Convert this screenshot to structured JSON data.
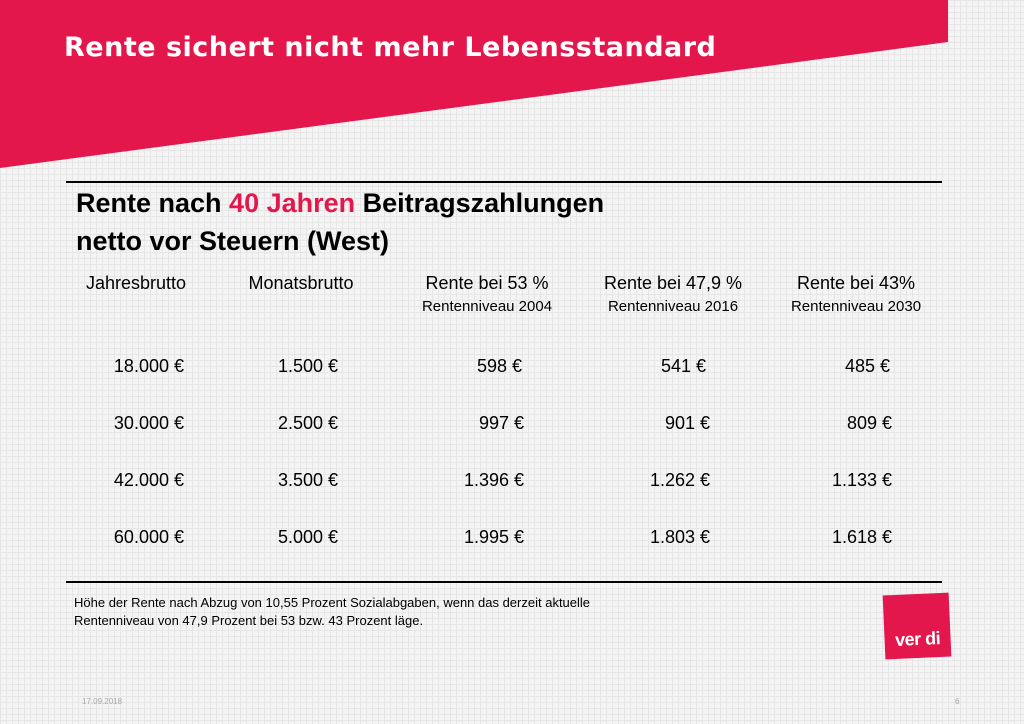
{
  "slide": {
    "title": "Rente sichert nicht mehr Lebensstandard",
    "date": "17.09.2018",
    "page_number": "6",
    "brand_color": "#e3174c"
  },
  "heading": {
    "line1_pre": "Rente nach ",
    "line1_accent": "40 Jahren",
    "line1_post": " Beitragszahlungen",
    "line2": "netto vor Steuern (West)"
  },
  "table": {
    "columns": [
      {
        "label": "Jahresbrutto",
        "sub": ""
      },
      {
        "label": "Monatsbrutto",
        "sub": ""
      },
      {
        "label": "Rente bei 53 %",
        "sub": "Rentenniveau 2004"
      },
      {
        "label": "Rente bei 47,9 %",
        "sub": "Rentenniveau 2016"
      },
      {
        "label": "Rente bei 43%",
        "sub": "Rentenniveau 2030"
      }
    ],
    "rows": [
      [
        "18.000 €",
        "1.500 €",
        "598 €",
        "541 €",
        "485 €"
      ],
      [
        "30.000 €",
        "2.500 €",
        "997 €",
        "901 €",
        "809 €"
      ],
      [
        "42.000 €",
        "3.500 €",
        "1.396 €",
        "1.262 €",
        "1.133 €"
      ],
      [
        "60.000 €",
        "5.000 €",
        "1.995 €",
        "1.803 €",
        "1.618 €"
      ]
    ]
  },
  "note": {
    "line1": "Höhe der Rente nach Abzug von 10,55 Prozent Sozialabgaben, wenn das derzeit aktuelle",
    "line2": "Rentenniveau  von 47,9 Prozent bei 53 bzw. 43 Prozent läge."
  },
  "logo": {
    "text": "ver di"
  }
}
